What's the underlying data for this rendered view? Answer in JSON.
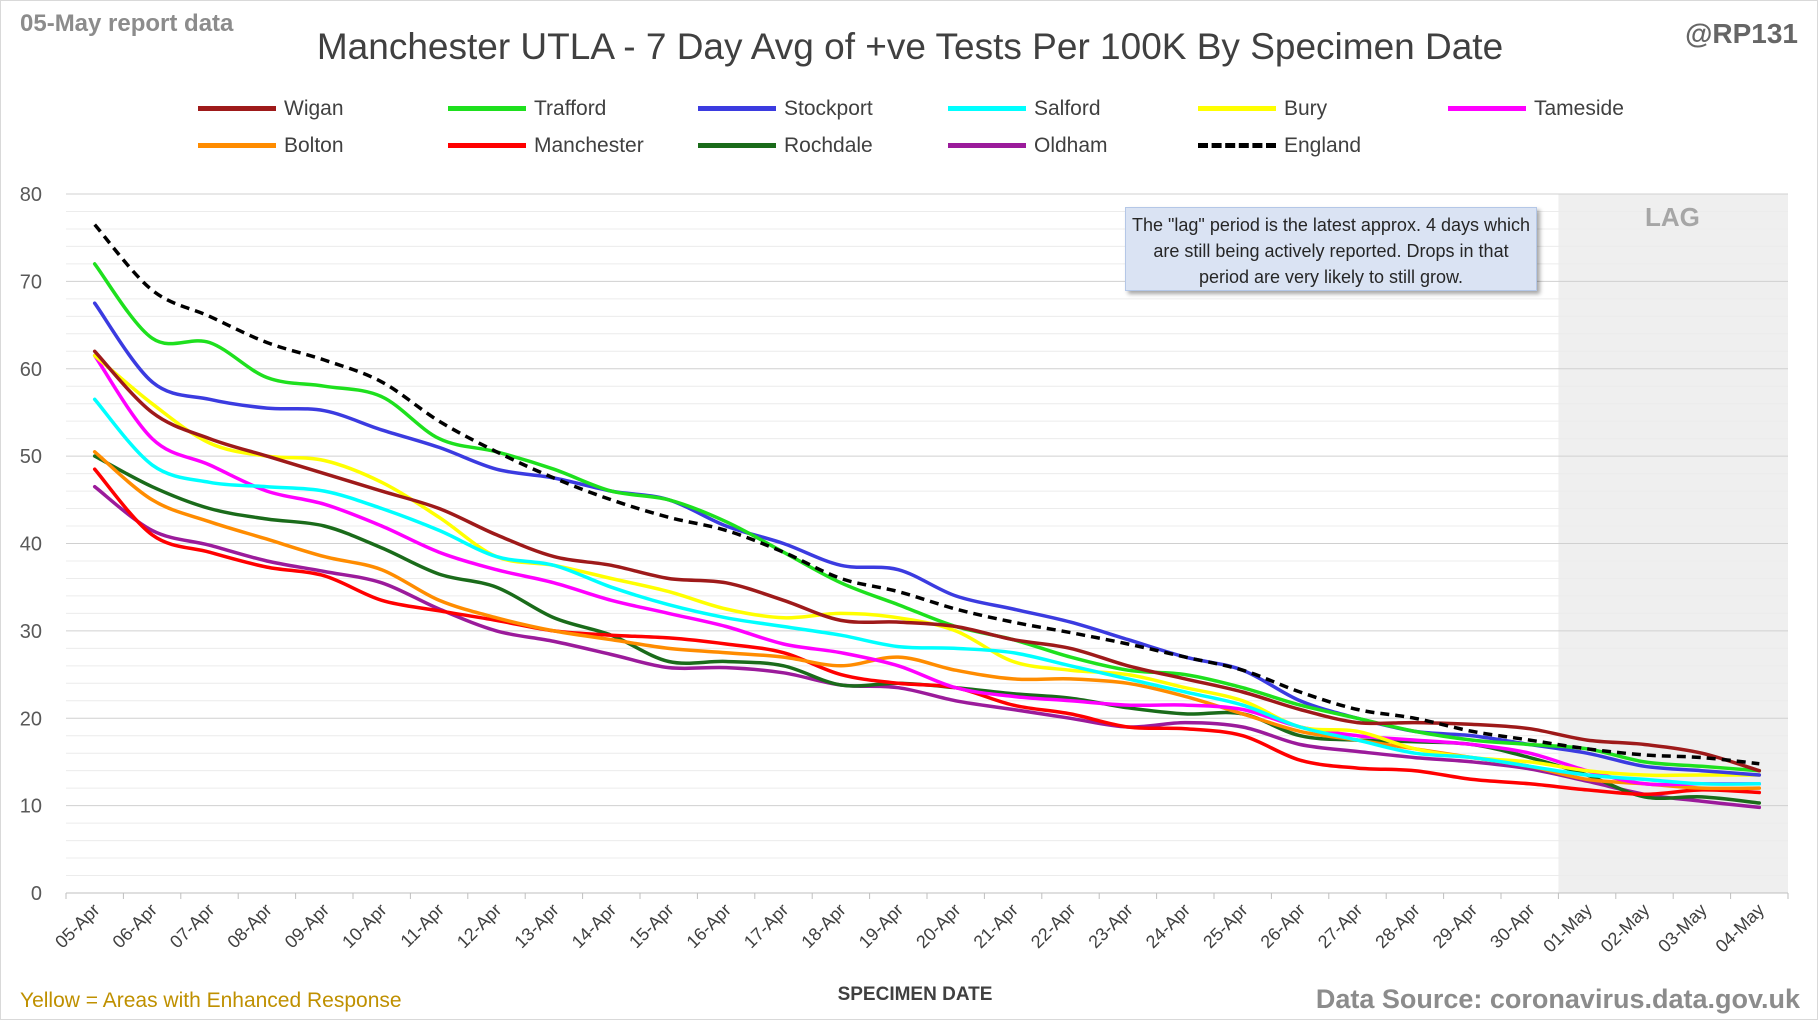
{
  "header": {
    "report_label": "05-May report data",
    "handle": "@RP131"
  },
  "footer": {
    "note": "Yellow = Areas with Enhanced Response",
    "source": "Data Source: coronavirus.data.gov.uk"
  },
  "annotation": "The \"lag\" period is the latest approx. 4 days which are still being actively reported. Drops in that period are very likely to still grow.",
  "lag_label": "LAG",
  "lag_start_index": 26,
  "chart_data": {
    "type": "line",
    "title": "Manchester UTLA - 7 Day Avg of +ve Tests Per 100K By Specimen Date",
    "xlabel": "SPECIMEN DATE",
    "ylabel": "",
    "ylim": [
      0,
      80
    ],
    "yticks": [
      0,
      10,
      20,
      30,
      40,
      50,
      60,
      70,
      80
    ],
    "grid": true,
    "legend_position": "top",
    "x": [
      "05-Apr",
      "06-Apr",
      "07-Apr",
      "08-Apr",
      "09-Apr",
      "10-Apr",
      "11-Apr",
      "12-Apr",
      "13-Apr",
      "14-Apr",
      "15-Apr",
      "16-Apr",
      "17-Apr",
      "18-Apr",
      "19-Apr",
      "20-Apr",
      "21-Apr",
      "22-Apr",
      "23-Apr",
      "24-Apr",
      "25-Apr",
      "26-Apr",
      "27-Apr",
      "28-Apr",
      "29-Apr",
      "30-Apr",
      "01-May",
      "02-May",
      "03-May",
      "04-May"
    ],
    "series": [
      {
        "name": "Wigan",
        "color": "#9e1a1a",
        "dashed": false,
        "values": [
          62,
          55,
          52,
          50,
          48,
          46,
          44,
          41,
          38.5,
          37.5,
          36,
          35.5,
          33.5,
          31.2,
          31,
          30.5,
          29,
          28,
          26,
          24.5,
          23,
          21,
          19.5,
          19.5,
          19.3,
          18.8,
          17.5,
          17,
          16,
          14
        ]
      },
      {
        "name": "Trafford",
        "color": "#1ee01e",
        "dashed": false,
        "values": [
          72,
          63.5,
          63,
          59,
          58,
          56.8,
          52,
          50.5,
          48.5,
          46,
          45,
          42.5,
          39,
          35.5,
          33,
          30.5,
          29,
          27,
          25.5,
          25,
          23.5,
          21.5,
          20,
          18.5,
          17.5,
          17,
          16.5,
          15,
          14.5,
          14
        ]
      },
      {
        "name": "Stockport",
        "color": "#3b3be0",
        "dashed": false,
        "values": [
          67.5,
          58.5,
          56.5,
          55.5,
          55.2,
          53,
          51,
          48.5,
          47.5,
          46,
          45,
          42,
          40,
          37.5,
          37,
          34,
          32.5,
          31,
          29,
          27,
          25.5,
          22,
          20,
          18.5,
          18,
          17,
          16,
          14.5,
          14,
          13.5
        ]
      },
      {
        "name": "Salford",
        "color": "#00ffff",
        "dashed": false,
        "values": [
          56.5,
          49,
          47,
          46.5,
          46,
          44,
          41.5,
          38.5,
          37.5,
          35,
          33,
          31.5,
          30.5,
          29.5,
          28.2,
          28,
          27.5,
          26,
          24.5,
          23,
          21.5,
          19,
          17.5,
          16,
          15.5,
          14.5,
          13.5,
          13,
          12.5,
          12.5
        ]
      },
      {
        "name": "Bury",
        "color": "#ffff00",
        "dashed": false,
        "values": [
          61.5,
          56,
          51.5,
          50,
          49.5,
          47,
          43,
          38.5,
          37.5,
          36,
          34.5,
          32.5,
          31.5,
          32,
          31.5,
          30,
          26.5,
          25.5,
          25,
          23.5,
          22,
          19,
          18.5,
          16.5,
          15.5,
          15,
          14,
          13.5,
          13.5,
          13.5
        ]
      },
      {
        "name": "Tameside",
        "color": "#ff00ff",
        "dashed": false,
        "values": [
          61.5,
          52,
          49,
          46,
          44.5,
          42,
          39,
          37,
          35.5,
          33.5,
          32,
          30.5,
          28.5,
          27.5,
          26,
          23.5,
          22.5,
          22,
          21.5,
          21.5,
          21,
          19,
          18,
          17.5,
          17,
          16,
          14,
          12.5,
          12.5,
          12.5
        ]
      },
      {
        "name": "Bolton",
        "color": "#ff8c00",
        "dashed": false,
        "values": [
          50.5,
          45,
          42.5,
          40.5,
          38.5,
          37,
          33.5,
          31.5,
          30,
          29,
          28,
          27.5,
          27,
          26,
          27,
          25.5,
          24.5,
          24.5,
          24,
          22.5,
          20.5,
          18.5,
          17.5,
          16.5,
          15.5,
          14.5,
          13,
          12.5,
          12,
          12
        ]
      },
      {
        "name": "Manchester",
        "color": "#ff0000",
        "dashed": false,
        "values": [
          48.5,
          41,
          39,
          37.3,
          36.3,
          33.5,
          32.3,
          31.2,
          30,
          29.5,
          29.2,
          28.5,
          27.5,
          25,
          24,
          23.5,
          21.5,
          20.5,
          19,
          18.8,
          18,
          15.2,
          14.3,
          14,
          13,
          12.5,
          11.8,
          11.3,
          11.8,
          11.5
        ]
      },
      {
        "name": "Rochdale",
        "color": "#1a6b1a",
        "dashed": false,
        "values": [
          50,
          46.5,
          44,
          42.8,
          42,
          39.5,
          36.5,
          35,
          31.5,
          29.5,
          26.5,
          26.5,
          26,
          23.8,
          24,
          23.5,
          22.8,
          22.3,
          21.2,
          20.5,
          20.5,
          18,
          17.5,
          17.3,
          17,
          15.5,
          13.5,
          11,
          11,
          10.3
        ]
      },
      {
        "name": "Oldham",
        "color": "#9b1b9b",
        "dashed": false,
        "values": [
          46.5,
          41.5,
          39.8,
          38,
          36.8,
          35.5,
          32.5,
          30,
          28.8,
          27.3,
          25.8,
          25.8,
          25.2,
          23.8,
          23.5,
          22,
          21,
          20,
          19,
          19.5,
          19,
          17,
          16.2,
          15.5,
          15,
          14.2,
          12.8,
          11.3,
          10.5,
          9.8
        ]
      },
      {
        "name": "England",
        "color": "#000000",
        "dashed": true,
        "values": [
          76.5,
          69,
          66,
          63,
          61,
          58.5,
          54,
          50.5,
          47.5,
          45,
          43,
          41.5,
          39,
          36,
          34.5,
          32.5,
          31,
          29.8,
          28.5,
          27,
          25.5,
          23,
          21,
          20,
          18.5,
          17.5,
          16.5,
          15.8,
          15.5,
          14.8
        ]
      }
    ]
  }
}
